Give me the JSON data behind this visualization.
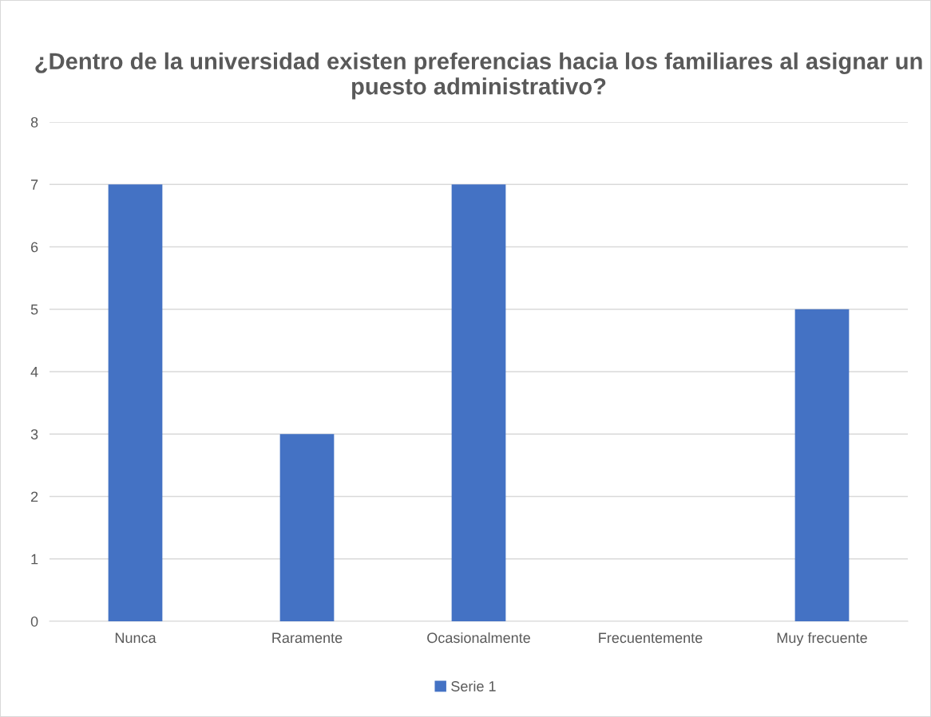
{
  "chart_data": {
    "type": "bar",
    "title": "¿Dentro de la universidad existen preferencias hacia los familiares al asignar un puesto administrativo?",
    "categories": [
      "Nunca",
      "Raramente",
      "Ocasionalmente",
      "Frecuentemente",
      "Muy frecuente"
    ],
    "series": [
      {
        "name": "Serie 1",
        "color": "#4472c4",
        "values": [
          7,
          3,
          7,
          0,
          5
        ]
      }
    ],
    "ylim": [
      0,
      8
    ],
    "yticks": [
      0,
      1,
      2,
      3,
      4,
      5,
      6,
      7,
      8
    ],
    "grid": "y",
    "legend": "bottom"
  }
}
